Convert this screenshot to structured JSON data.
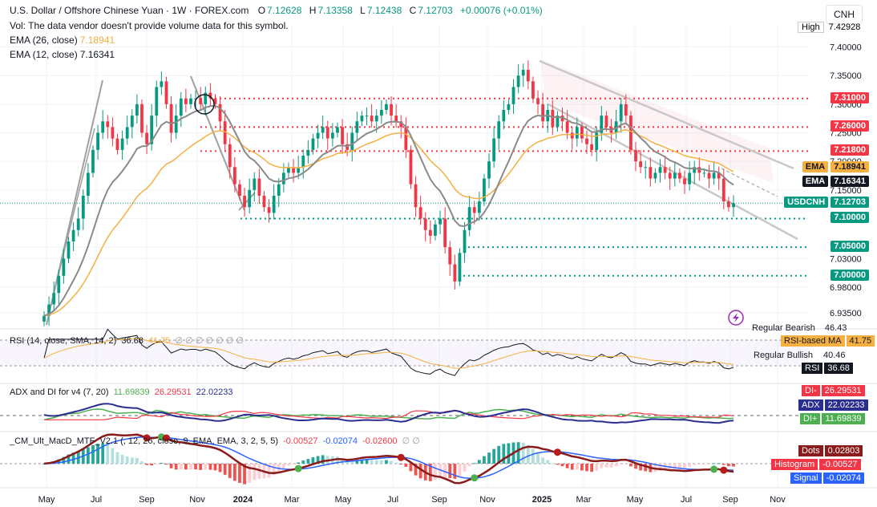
{
  "header": {
    "title": "U.S. Dollar / Offshore Chinese Yuan · 1W · FOREX.com",
    "open_label": "O",
    "open": "7.12628",
    "high_label": "H",
    "high": "7.13358",
    "low_label": "L",
    "low": "7.12438",
    "close_label": "C",
    "close": "7.12703",
    "change": "+0.00076 (+0.01%)",
    "volume_note": "Vol: The data vendor doesn't provide volume data for this symbol.",
    "ema26_label": "EMA (26, close)",
    "ema26_value": "7.18941",
    "ema12_label": "EMA (12, close)",
    "ema12_value": "7.16341"
  },
  "currency_button": "CNH",
  "colors": {
    "up": "#089981",
    "down": "#f23645",
    "ema26": "#f5b041",
    "ema12": "#8a8a8a",
    "channel": "#c8c8c8",
    "level": "#f23645",
    "support": "#089981",
    "rsi": "#131722",
    "rsi_ma": "#f5b041",
    "adx": "#2a2e8f",
    "di_plus": "#4caf50",
    "di_minus": "#f23645",
    "macd": "#8b1a1a",
    "signal": "#2962ff"
  },
  "price_axis": {
    "high_label": "High",
    "high_value": "7.42928",
    "ticks": [
      "7.40000",
      "7.35000",
      "7.30000",
      "7.25000",
      "7.20000",
      "7.15000",
      "7.10000",
      "7.05000",
      "7.03000",
      "6.98000",
      "6.93500"
    ],
    "tags": [
      {
        "label": "",
        "value": "7.31000",
        "price": 7.31,
        "type": "resistance"
      },
      {
        "label": "",
        "value": "7.26000",
        "price": 7.26,
        "type": "resistance"
      },
      {
        "label": "",
        "value": "7.21800",
        "price": 7.218,
        "type": "resistance"
      },
      {
        "label": "EMA",
        "value": "7.18941",
        "price": 7.18941,
        "type": "ema26"
      },
      {
        "label": "EMA",
        "value": "7.16341",
        "price": 7.16341,
        "type": "ema12"
      },
      {
        "label": "USDCNH",
        "value": "7.12703",
        "price": 7.12703,
        "type": "last"
      },
      {
        "label": "",
        "value": "7.10000",
        "price": 7.1,
        "type": "support"
      },
      {
        "label": "",
        "value": "7.05000",
        "price": 7.05,
        "type": "support"
      },
      {
        "label": "",
        "value": "7.00000",
        "price": 7.0,
        "type": "support"
      }
    ]
  },
  "time_axis": [
    "May",
    "Jul",
    "Sep",
    "Nov",
    "2024",
    "Mar",
    "May",
    "Jul",
    "Sep",
    "Nov",
    "2025",
    "Mar",
    "May",
    "Jul",
    "Sep",
    "Nov"
  ],
  "rsi": {
    "legend": "RSI (14, close, SMA, 14, 2)",
    "rsi_value": "36.68",
    "ma_value": "41.75",
    "placeholders": "∅ ∅ ∅ ∅ ∅ ∅ ∅",
    "bear_label": "Regular Bearish",
    "bear_value": "46.43",
    "ma_label": "RSI-based MA",
    "ma_tag": "41.75",
    "bull_label": "Regular Bullish",
    "bull_value": "40.46",
    "rsi_label": "RSI",
    "rsi_tag": "36.68"
  },
  "adx": {
    "legend": "ADX and DI for v4 (7, 20)",
    "v1": "11.69839",
    "v2": "26.29531",
    "v3": "22.02233",
    "di_minus_label": "DI-",
    "di_minus": "26.29531",
    "adx_label": "ADX",
    "adx_value": "22.02233",
    "di_plus_label": "DI+",
    "di_plus": "11.69839"
  },
  "macd": {
    "legend": "_CM_Ult_MacD_MTF_V2.1 (, 12, 26, close, 9, EMA, EMA, 3, 2, 5, 5)",
    "v1": "-0.00527",
    "v2": "-0.02074",
    "v3": "-0.02600",
    "placeholders": "∅ ∅",
    "dots_label": "Dots",
    "dots_value": "0.02803",
    "hist_label": "Histogram",
    "hist_value": "-0.00527",
    "signal_label": "Signal",
    "signal_value": "-0.02074"
  },
  "chart_data": {
    "type": "candlestick",
    "symbol": "USDCNH",
    "interval": "1W",
    "ylim": [
      6.91,
      7.44
    ],
    "closes": [
      6.93,
      6.95,
      6.97,
      7.0,
      7.03,
      7.06,
      7.08,
      7.1,
      7.14,
      7.18,
      7.22,
      7.25,
      7.27,
      7.26,
      7.24,
      7.22,
      7.24,
      7.26,
      7.28,
      7.3,
      7.25,
      7.23,
      7.28,
      7.33,
      7.34,
      7.3,
      7.25,
      7.28,
      7.31,
      7.3,
      7.31,
      7.31,
      7.3,
      7.32,
      7.31,
      7.3,
      7.27,
      7.23,
      7.19,
      7.16,
      7.14,
      7.12,
      7.15,
      7.17,
      7.14,
      7.12,
      7.11,
      7.14,
      7.16,
      7.18,
      7.19,
      7.18,
      7.19,
      7.21,
      7.22,
      7.24,
      7.25,
      7.26,
      7.24,
      7.25,
      7.26,
      7.23,
      7.22,
      7.25,
      7.27,
      7.28,
      7.28,
      7.27,
      7.28,
      7.29,
      7.3,
      7.28,
      7.27,
      7.26,
      7.22,
      7.16,
      7.12,
      7.1,
      7.08,
      7.07,
      7.09,
      7.1,
      7.05,
      7.02,
      6.99,
      7.04,
      7.08,
      7.12,
      7.11,
      7.13,
      7.17,
      7.2,
      7.24,
      7.27,
      7.29,
      7.3,
      7.33,
      7.35,
      7.36,
      7.34,
      7.31,
      7.3,
      7.27,
      7.29,
      7.26,
      7.28,
      7.27,
      7.25,
      7.24,
      7.26,
      7.24,
      7.23,
      7.22,
      7.25,
      7.28,
      7.26,
      7.25,
      7.27,
      7.3,
      7.28,
      7.22,
      7.2,
      7.19,
      7.19,
      7.17,
      7.18,
      7.19,
      7.18,
      7.17,
      7.18,
      7.17,
      7.16,
      7.18,
      7.19,
      7.18,
      7.18,
      7.17,
      7.18,
      7.17,
      7.13,
      7.12,
      7.127
    ]
  }
}
